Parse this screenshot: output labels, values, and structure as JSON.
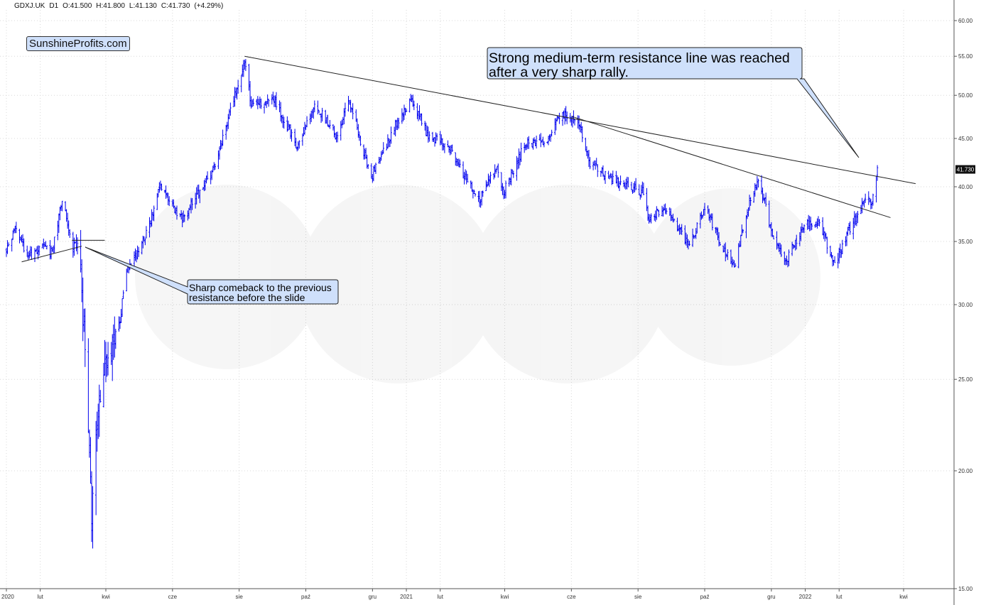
{
  "header": {
    "symbol": "GDXJ.UK",
    "interval": "D1",
    "open": "O:41.500",
    "high": "H:41.800",
    "low": "L:41.130",
    "close": "C:41.730",
    "change": "(+4.29%)"
  },
  "brand": "SunshineProfits.com",
  "colors": {
    "bars": "#0000ee",
    "callout_fill": "#cfe0fb",
    "last_price_bg": "#111111",
    "trendline": "#222222"
  },
  "chart_data": {
    "type": "ohlc",
    "y_scale": "log",
    "ylim": [
      15,
      62
    ],
    "y_ticks": [
      "60.00",
      "55.00",
      "50.00",
      "45.00",
      "40.00",
      "35.00",
      "30.00",
      "25.00",
      "20.00",
      "15.00"
    ],
    "x_ticks": [
      "2020",
      "lut",
      "kwi",
      "cze",
      "sie",
      "paź",
      "gru",
      "2021",
      "lut",
      "kwi",
      "cze",
      "sie",
      "paź",
      "gru",
      "2022",
      "lut",
      "kwi"
    ],
    "last_price": "41.730",
    "anchors": [
      [
        "2020-01-01",
        34.2
      ],
      [
        "2020-01-10",
        36.4
      ],
      [
        "2020-01-20",
        33.6
      ],
      [
        "2020-02-05",
        34.6
      ],
      [
        "2020-02-12",
        34.0
      ],
      [
        "2020-02-21",
        38.8
      ],
      [
        "2020-03-02",
        34.5
      ],
      [
        "2020-03-07",
        35.0
      ],
      [
        "2020-03-13",
        27.0
      ],
      [
        "2020-03-17",
        21.5
      ],
      [
        "2020-03-19",
        18.0
      ],
      [
        "2020-03-24",
        22.5
      ],
      [
        "2020-04-02",
        26.5
      ],
      [
        "2020-04-14",
        29.0
      ],
      [
        "2020-04-20",
        32.5
      ],
      [
        "2020-05-10",
        36.0
      ],
      [
        "2020-05-20",
        40.0
      ],
      [
        "2020-05-29",
        38.5
      ],
      [
        "2020-06-10",
        37.0
      ],
      [
        "2020-06-25",
        39.5
      ],
      [
        "2020-07-10",
        42.0
      ],
      [
        "2020-07-28",
        50.0
      ],
      [
        "2020-08-06",
        54.0
      ],
      [
        "2020-08-12",
        49.0
      ],
      [
        "2020-09-02",
        49.5
      ],
      [
        "2020-09-23",
        44.0
      ],
      [
        "2020-10-10",
        49.0
      ],
      [
        "2020-10-30",
        45.0
      ],
      [
        "2020-11-09",
        49.5
      ],
      [
        "2020-11-30",
        41.0
      ],
      [
        "2020-12-20",
        46.0
      ],
      [
        "2021-01-06",
        49.5
      ],
      [
        "2021-01-20",
        45.5
      ],
      [
        "2021-02-10",
        44.0
      ],
      [
        "2021-03-08",
        38.5
      ],
      [
        "2021-03-25",
        42.0
      ],
      [
        "2021-03-31",
        39.5
      ],
      [
        "2021-04-20",
        44.5
      ],
      [
        "2021-05-10",
        44.5
      ],
      [
        "2021-05-20",
        47.5
      ],
      [
        "2021-06-01",
        47.5
      ],
      [
        "2021-06-10",
        46.0
      ],
      [
        "2021-06-17",
        42.5
      ],
      [
        "2021-07-10",
        40.5
      ],
      [
        "2021-08-05",
        39.5
      ],
      [
        "2021-08-11",
        37.0
      ],
      [
        "2021-08-26",
        38.0
      ],
      [
        "2021-09-08",
        36.0
      ],
      [
        "2021-09-17",
        34.5
      ],
      [
        "2021-10-01",
        38.0
      ],
      [
        "2021-10-20",
        34.0
      ],
      [
        "2021-10-29",
        33.0
      ],
      [
        "2021-11-08",
        37.5
      ],
      [
        "2021-11-18",
        40.5
      ],
      [
        "2021-11-25",
        38.5
      ],
      [
        "2021-12-03",
        35.0
      ],
      [
        "2021-12-15",
        33.5
      ],
      [
        "2021-12-31",
        36.5
      ],
      [
        "2022-01-14",
        36.5
      ],
      [
        "2022-01-28",
        33.0
      ],
      [
        "2022-02-08",
        35.5
      ],
      [
        "2022-02-25",
        39.0
      ],
      [
        "2022-03-03",
        38.5
      ],
      [
        "2022-03-08",
        41.7
      ]
    ],
    "trendlines": [
      {
        "name": "medium-term-resistance",
        "from": [
          "2020-08-06",
          55.0
        ],
        "to": [
          "2022-04-12",
          40.3
        ]
      },
      {
        "name": "second-resistance",
        "from": [
          "2021-06-01",
          47.5
        ],
        "to": [
          "2022-03-20",
          37.1
        ]
      },
      {
        "name": "early-support",
        "from": [
          "2020-01-15",
          33.3
        ],
        "to": [
          "2020-03-10",
          34.6
        ]
      },
      {
        "name": "early-horizontal",
        "from": [
          "2020-03-01",
          35.1
        ],
        "to": [
          "2020-03-31",
          35.1
        ]
      }
    ],
    "annotations": [
      {
        "line1": "Strong medium-term resistance line was reached",
        "line2": "after a very sharp rally."
      },
      {
        "line1": "Sharp comeback to the previous",
        "line2": "resistance before the slide"
      }
    ]
  }
}
